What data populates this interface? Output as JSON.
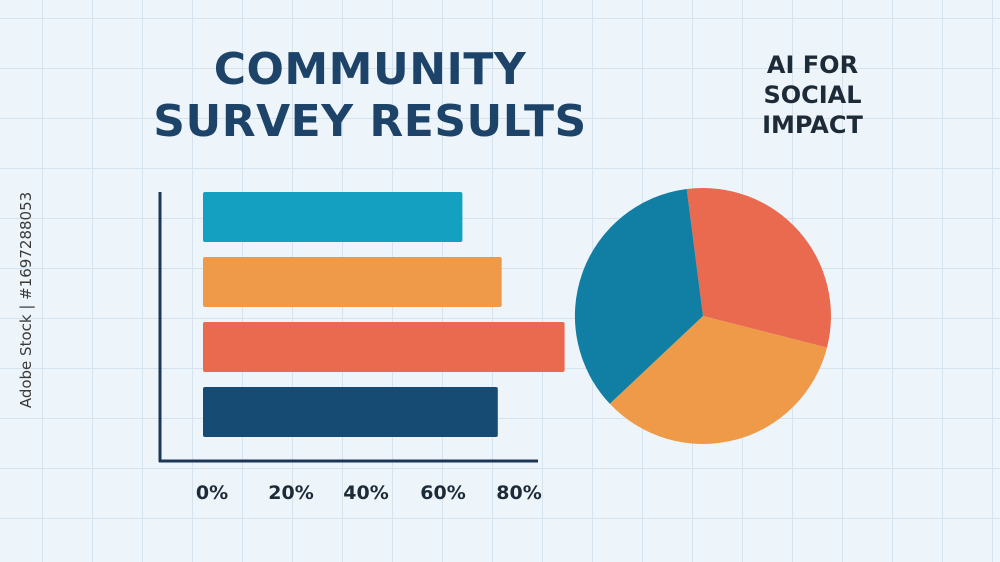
{
  "title": {
    "line1": "COMMUNITY",
    "line2": "SURVEY RESULTS"
  },
  "brand": {
    "line1": "AI FOR",
    "line2": "SOCIAL",
    "line3": "IMPACT"
  },
  "watermark": "Adobe Stock | #1697288053",
  "colors": {
    "teal": "#14a0c0",
    "orange": "#ee9a48",
    "red": "#e96a4f",
    "navy": "#164b74",
    "pie_blue": "#117fa3",
    "axis": "#1d3557"
  },
  "chart_data": [
    {
      "type": "bar",
      "orientation": "horizontal",
      "values": [
        66,
        76,
        92,
        75
      ],
      "bar_colors": [
        "#14a0c0",
        "#ee9a48",
        "#e96a4f",
        "#164b74"
      ],
      "xticks": [
        "0%",
        "20%",
        "40%",
        "60%",
        "80%"
      ],
      "xlim": [
        0,
        100
      ],
      "grid": false
    },
    {
      "type": "pie",
      "values": [
        31,
        34,
        35
      ],
      "slice_colors": [
        "#e96a4f",
        "#ee9a48",
        "#117fa3"
      ]
    }
  ]
}
